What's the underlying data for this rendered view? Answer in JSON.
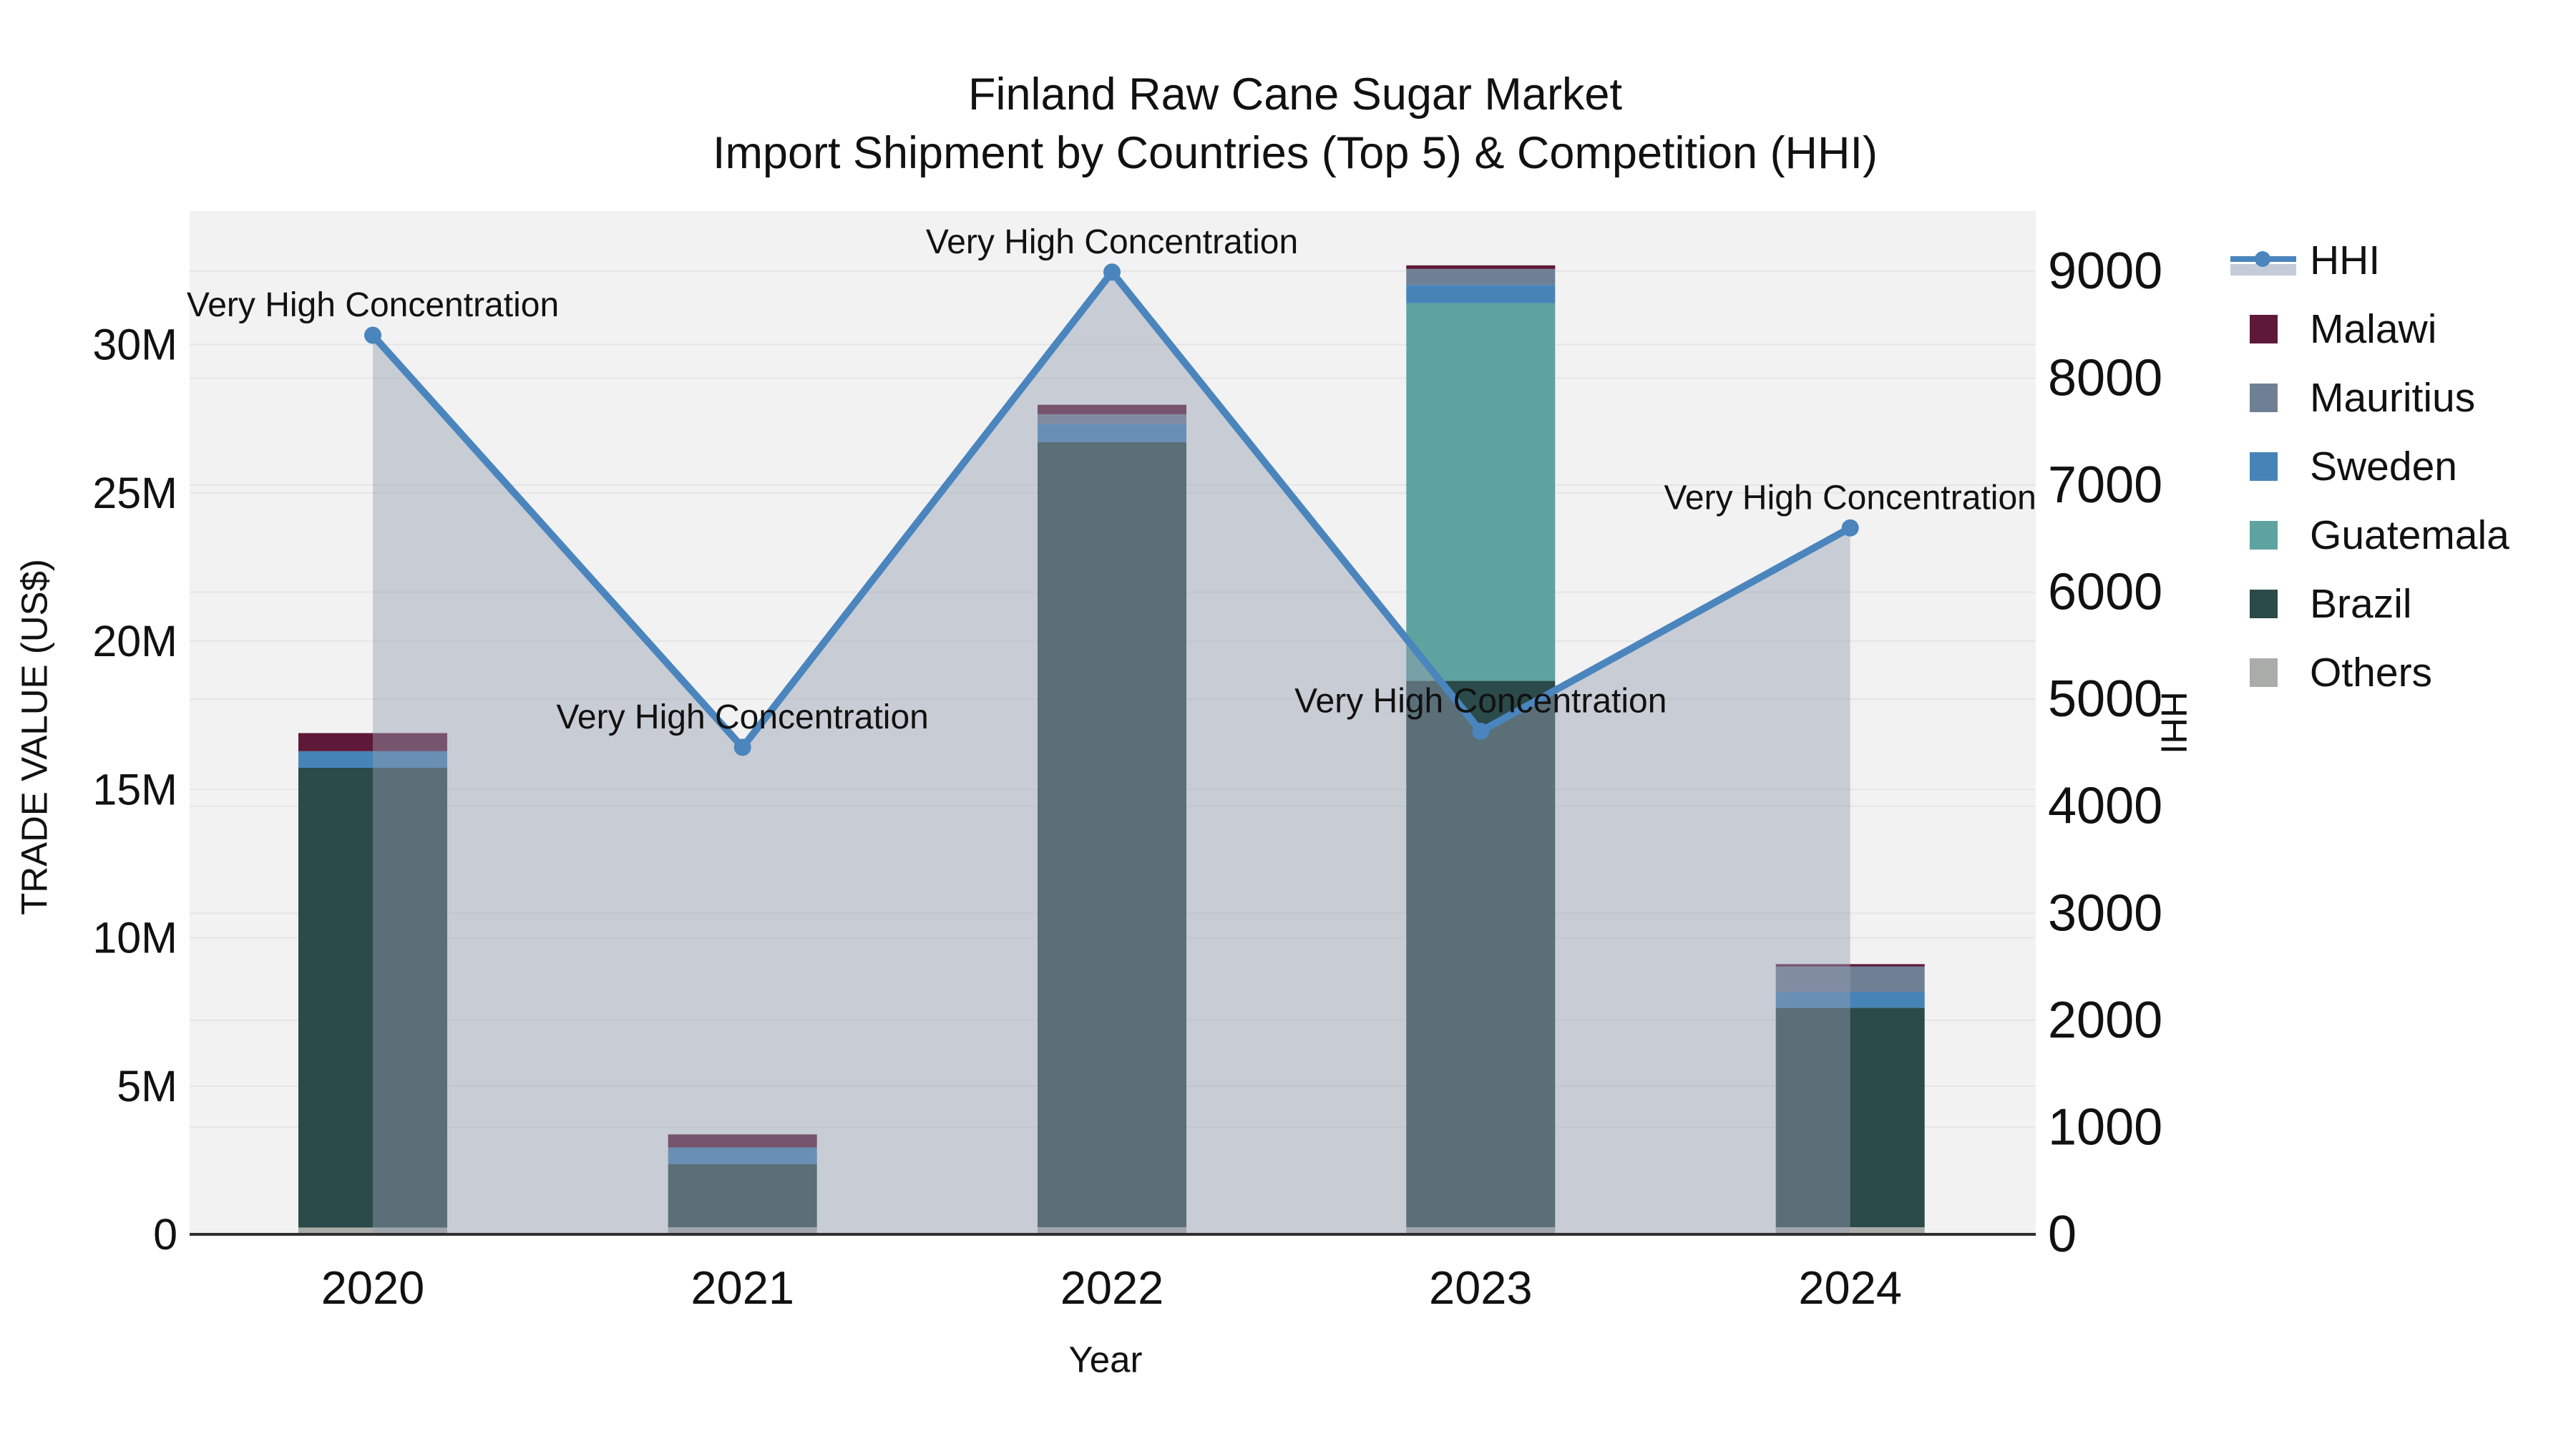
{
  "title": {
    "line1": "Finland Raw Cane Sugar Market",
    "line2": "Import Shipment by Countries (Top 5) & Competition (HHI)"
  },
  "axes": {
    "x_label": "Year",
    "y_left_label": "TRADE VALUE (US$)",
    "y_right_label": "HHI",
    "y_left_ticks": [
      "0",
      "5M",
      "10M",
      "15M",
      "20M",
      "25M",
      "30M"
    ],
    "y_left_tick_values_musd": [
      0,
      5,
      10,
      15,
      20,
      25,
      30
    ],
    "y_right_ticks": [
      "0",
      "1000",
      "2000",
      "3000",
      "4000",
      "5000",
      "6000",
      "7000",
      "8000",
      "9000"
    ],
    "y_right_tick_values": [
      0,
      1000,
      2000,
      3000,
      4000,
      5000,
      6000,
      7000,
      8000,
      9000
    ]
  },
  "chart_data": {
    "type": "combo: stacked bars (trade value, left axis) + line with markers and area fill (HHI, right axis)",
    "categories": [
      "2020",
      "2021",
      "2022",
      "2023",
      "2024"
    ],
    "bar_unit": "million US$",
    "series": [
      {
        "name": "Malawi",
        "color": "#5e1838",
        "values": [
          0.61,
          0.44,
          0.32,
          0.12,
          0.08
        ]
      },
      {
        "name": "Mauritius",
        "color": "#6f8095",
        "values": [
          0,
          0,
          0.32,
          0.54,
          0.85
        ]
      },
      {
        "name": "Sweden",
        "color": "#4684b8",
        "values": [
          0.56,
          0.56,
          0.62,
          0.61,
          0.54
        ]
      },
      {
        "name": "Guatemala",
        "color": "#5fa3a1",
        "values": [
          0,
          0,
          0,
          12.74,
          0
        ]
      },
      {
        "name": "Brazil",
        "color": "#2b4a4a",
        "values": [
          15.5,
          2.13,
          26.47,
          18.42,
          7.4
        ]
      },
      {
        "name": "Others",
        "color": "#aaaca9",
        "values": [
          0.23,
          0.24,
          0.24,
          0.24,
          0.24
        ]
      }
    ],
    "stack_order_bottom_to_top": [
      "Others",
      "Brazil",
      "Guatemala",
      "Sweden",
      "Mauritius",
      "Malawi"
    ],
    "totals_musd": [
      16.9,
      3.37,
      27.97,
      32.67,
      9.11
    ],
    "line_series": {
      "name": "HHI",
      "color": "#4a85bd",
      "area_fill": "rgba(148,158,176,0.45)",
      "values": [
        8400,
        4550,
        8990,
        4700,
        6600
      ]
    },
    "annotations": [
      "Very High Concentration",
      "Very High Concentration",
      "Very High Concentration",
      "Very High Concentration",
      "Very High Concentration"
    ],
    "y_left_range_usd": [
      0,
      34500000
    ],
    "y_right_range": [
      0,
      9560
    ],
    "grid": "on",
    "legend_position": "outside right, top",
    "legend": [
      {
        "label": "HHI",
        "type": "line",
        "color": "#4a85bd"
      },
      {
        "label": "Malawi",
        "type": "patch",
        "color": "#5e1838"
      },
      {
        "label": "Mauritius",
        "type": "patch",
        "color": "#6f8095"
      },
      {
        "label": "Sweden",
        "type": "patch",
        "color": "#4684b8"
      },
      {
        "label": "Guatemala",
        "type": "patch",
        "color": "#5fa3a1"
      },
      {
        "label": "Brazil",
        "type": "patch",
        "color": "#2b4a4a"
      },
      {
        "label": "Others",
        "type": "patch",
        "color": "#aaaca9"
      }
    ],
    "colors": {
      "plot_background": "#f2f2f2",
      "figure_background": "#ffffff",
      "gridline": "#e5e5e5",
      "axis_line": "#2f2f2f"
    }
  }
}
